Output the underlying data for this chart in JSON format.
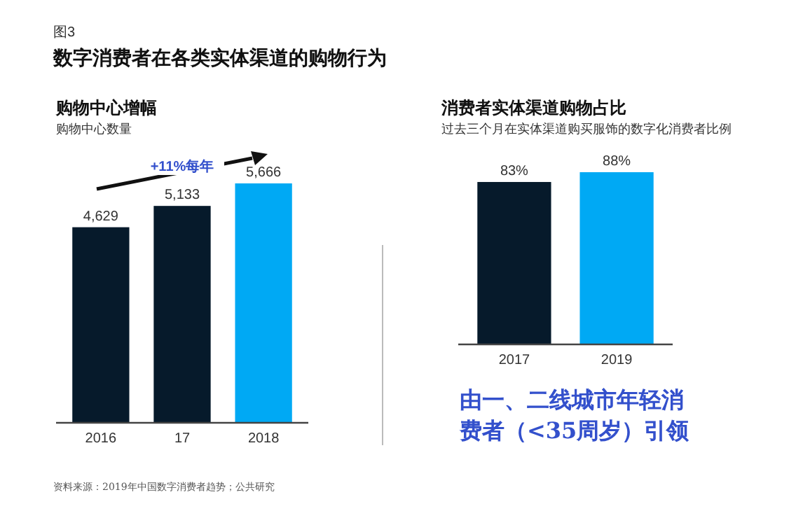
{
  "chart_data": [
    {
      "type": "bar",
      "title": "购物中心增幅",
      "subtitle": "购物中心数量",
      "categories": [
        "2016",
        "17",
        "2018"
      ],
      "values": [
        4629,
        5133,
        5666
      ],
      "value_labels": [
        "4,629",
        "5,133",
        "5,666"
      ],
      "colors": [
        "#061a2b",
        "#061a2b",
        "#00a9f4"
      ],
      "annotations": [
        "图3",
        "数字消费者在各类实体渠道的购物行为",
        "+11%每年",
        "资料来源：2019年中国数字消费者趋势；公共研究"
      ]
    },
    {
      "type": "bar",
      "title": "消费者实体渠道购物占比",
      "subtitle": "过去三个月在实体渠道购买服饰的数字化消费者比例",
      "categories": [
        "2017",
        "2019"
      ],
      "values": [
        83,
        88
      ],
      "value_labels": [
        "83%",
        "88%"
      ],
      "colors": [
        "#061a2b",
        "#00a9f4"
      ],
      "annotations": [
        "由一、二线城市年轻消费者（<35周岁）引领"
      ]
    }
  ]
}
